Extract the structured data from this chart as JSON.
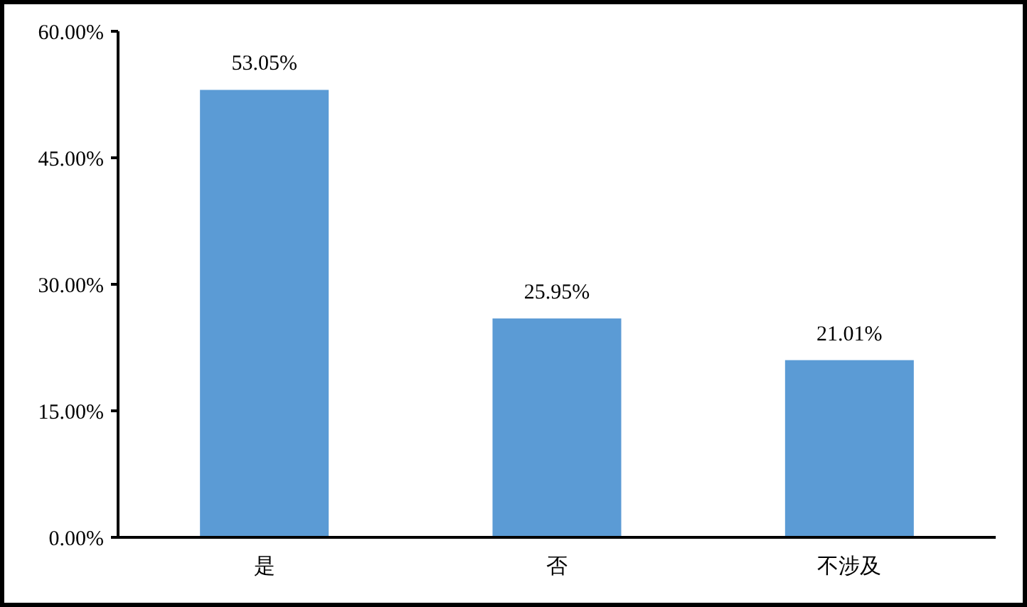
{
  "chart_data": {
    "type": "bar",
    "categories": [
      "是",
      "否",
      "不涉及"
    ],
    "values": [
      53.05,
      25.95,
      21.01
    ],
    "value_labels": [
      "53.05%",
      "25.95%",
      "21.01%"
    ],
    "color": "#5b9bd5",
    "ylim": [
      0,
      60
    ],
    "yticks": [
      {
        "value": 0,
        "label": "0.00%"
      },
      {
        "value": 15,
        "label": "15.00%"
      },
      {
        "value": 30,
        "label": "30.00%"
      },
      {
        "value": 45,
        "label": "45.00%"
      },
      {
        "value": 60,
        "label": "60.00%"
      }
    ],
    "grid": false
  }
}
